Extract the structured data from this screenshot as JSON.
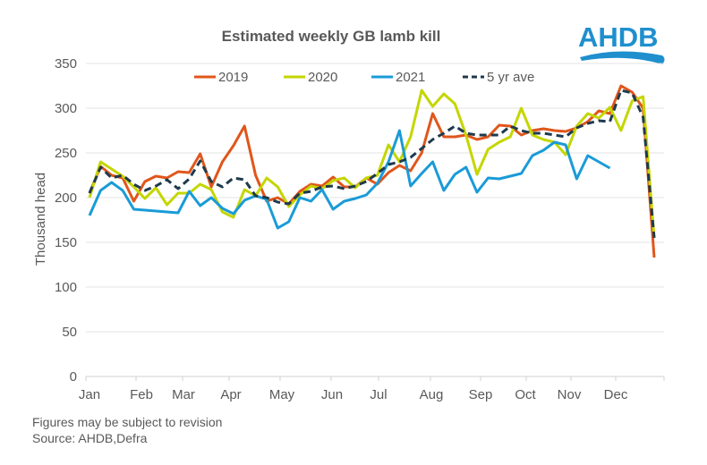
{
  "brand": {
    "logo_text": "AHDB",
    "logo_color": "#1f8fce"
  },
  "footnotes": {
    "revision": "Figures may be subject to revision",
    "source": "Source: AHDB,Defra"
  },
  "chart_data": {
    "type": "line",
    "title": "Estimated weekly GB lamb kill",
    "xlabel": "",
    "ylabel": "Thousand head",
    "ylim": [
      0,
      350
    ],
    "yticks": [
      0,
      50,
      100,
      150,
      200,
      250,
      300,
      350
    ],
    "grid": true,
    "legend_position": "top-center",
    "x": "week number 1-52",
    "categories": [
      "Jan",
      "Feb",
      "Mar",
      "Apr",
      "May",
      "Jun",
      "Jul",
      "Aug",
      "Sep",
      "Oct",
      "Nov",
      "Dec"
    ],
    "series": [
      {
        "name": "2019",
        "color": "#e0561b",
        "style": "solid",
        "values": [
          205,
          235,
          225,
          222,
          196,
          218,
          224,
          222,
          229,
          228,
          249,
          212,
          240,
          258,
          280,
          225,
          196,
          200,
          193,
          207,
          215,
          213,
          223,
          212,
          212,
          222,
          215,
          228,
          236,
          230,
          250,
          294,
          268,
          268,
          270,
          265,
          268,
          281,
          280,
          270,
          275,
          277,
          275,
          274,
          278,
          285,
          297,
          294,
          325,
          318,
          300,
          133
        ]
      },
      {
        "name": "2020",
        "color": "#c4d600",
        "style": "solid",
        "values": [
          200,
          240,
          232,
          224,
          212,
          199,
          211,
          192,
          205,
          205,
          215,
          209,
          184,
          178,
          209,
          202,
          222,
          212,
          190,
          203,
          213,
          210,
          219,
          222,
          211,
          222,
          225,
          259,
          240,
          268,
          320,
          302,
          316,
          305,
          270,
          226,
          254,
          262,
          268,
          300,
          270,
          265,
          262,
          248,
          280,
          294,
          289,
          301,
          275,
          308,
          313,
          155
        ]
      },
      {
        "name": "2021",
        "color": "#1a9bd7",
        "style": "solid",
        "values": [
          180,
          208,
          217,
          208,
          187,
          186,
          185,
          184,
          183,
          207,
          191,
          200,
          188,
          182,
          197,
          202,
          198,
          166,
          173,
          200,
          196,
          209,
          187,
          196,
          199,
          203,
          216,
          240,
          275,
          213,
          227,
          240,
          208,
          226,
          234,
          206,
          222,
          221,
          224,
          227,
          247,
          253,
          262,
          259,
          221,
          247,
          240,
          233
        ]
      },
      {
        "name": "5 yr ave",
        "color": "#1f3a4d",
        "style": "dashed",
        "values": [
          205,
          234,
          222,
          225,
          215,
          208,
          213,
          220,
          210,
          221,
          241,
          218,
          212,
          222,
          220,
          202,
          200,
          195,
          193,
          205,
          207,
          212,
          213,
          210,
          213,
          218,
          227,
          237,
          240,
          245,
          255,
          265,
          272,
          280,
          272,
          270,
          270,
          270,
          280,
          275,
          272,
          272,
          270,
          268,
          278,
          283,
          286,
          285,
          320,
          317,
          290,
          155
        ]
      }
    ]
  }
}
